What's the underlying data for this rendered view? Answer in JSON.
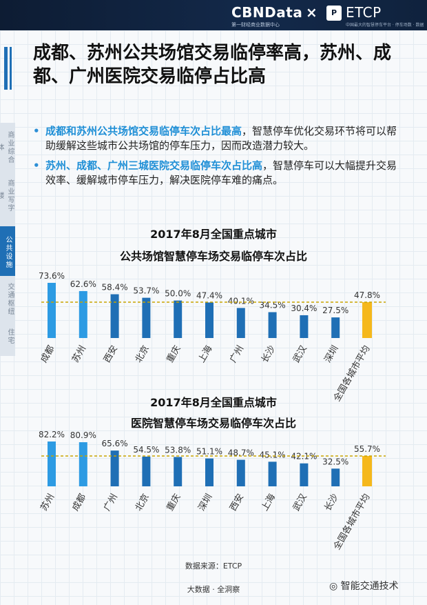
{
  "header": {
    "brand": "CBNData",
    "brand_sub": "第一财经商业数据中心",
    "times": "×",
    "etcp": "ETCP",
    "etcp_icon": "P",
    "etcp_sub": "中国最大的智慧停车平台 · 停车场数 · 数据"
  },
  "title": "成都、苏州公共场馆交易临停率高，苏州、成都、广州医院交易临停占比高",
  "bullets": [
    {
      "highlight": "成都和苏州公共场馆交易临停车次占比最高",
      "text": "，智慧停车优化交易环节将可以帮助缓解这些城市公共场馆的停车压力，因而改造潜力较大。"
    },
    {
      "highlight": "苏州、成都、广州三城医院交易临停车次占比高",
      "text": "，智慧停车可以大幅提升交易效率、缓解城市停车压力，解决医院停车难的痛点。"
    }
  ],
  "sidebar": {
    "items": [
      "商业综合体",
      "商业写字楼",
      "公共设施",
      "交通枢纽",
      "住宅"
    ]
  },
  "colors": {
    "top2": "#2d9be3",
    "normal": "#1f6fb5",
    "avg": "#f5b81c",
    "avg_line": "#c8a400"
  },
  "chart_data": [
    {
      "type": "bar",
      "title_line1": "2017年8月全国重点城市",
      "title_line2": "公共场馆智慧停车场交易临停车次占比",
      "categories": [
        "成都",
        "苏州",
        "西安",
        "北京",
        "重庆",
        "上海",
        "广州",
        "长沙",
        "武汉",
        "深圳",
        "全国各城市平均"
      ],
      "values": [
        73.6,
        62.6,
        58.4,
        53.7,
        50.0,
        47.4,
        40.1,
        34.5,
        30.4,
        27.5,
        47.8
      ],
      "labels": [
        "73.6%",
        "62.6%",
        "58.4%",
        "53.7%",
        "50.0%",
        "47.4%",
        "40.1%",
        "34.5%",
        "30.4%",
        "27.5%",
        "47.8%"
      ],
      "average": 47.8,
      "ylim": [
        0,
        80
      ]
    },
    {
      "type": "bar",
      "title_line1": "2017年8月全国重点城市",
      "title_line2": "医院智慧停车场交易临停车次占比",
      "categories": [
        "苏州",
        "成都",
        "广州",
        "北京",
        "重庆",
        "深圳",
        "西安",
        "上海",
        "武汉",
        "长沙",
        "全国各城市平均"
      ],
      "values": [
        82.2,
        80.9,
        65.6,
        54.5,
        53.8,
        51.1,
        48.7,
        45.1,
        42.1,
        32.5,
        55.7
      ],
      "labels": [
        "82.2%",
        "80.9%",
        "65.6%",
        "54.5%",
        "53.8%",
        "51.1%",
        "48.7%",
        "45.1%",
        "42.1%",
        "32.5%",
        "55.7%"
      ],
      "average": 55.7,
      "ylim": [
        0,
        90
      ]
    }
  ],
  "source": "数据来源：ETCP",
  "footer": "大数据 · 全洞察",
  "wechat": "智能交通技术"
}
